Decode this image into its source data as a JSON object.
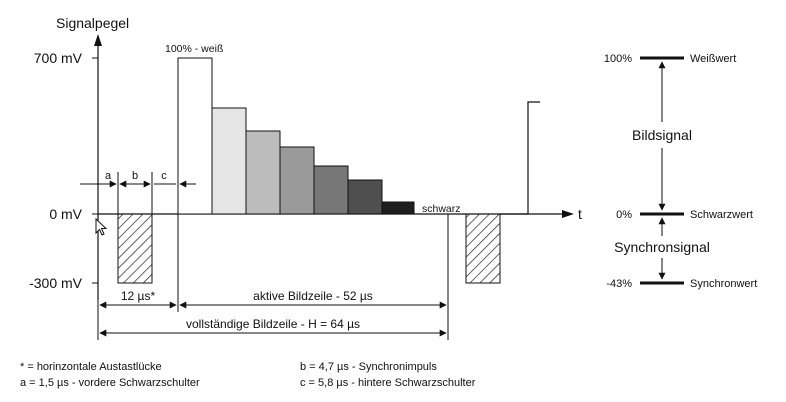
{
  "y_axis": {
    "title": "Signalpegel",
    "ticks": [
      {
        "label": "700 mV",
        "value": 700
      },
      {
        "label": "0 mV",
        "value": 0
      },
      {
        "label": "-300 mV",
        "value": -300
      }
    ]
  },
  "x_axis": {
    "label": "t"
  },
  "labels": {
    "white": "100% - weiß",
    "black": "schwarz",
    "a": "a",
    "b": "b",
    "c": "c",
    "blanking": "12 µs*",
    "active_line": "aktive Bildzeile - 52 µs",
    "full_line": "vollständige Bildzeile - H = 64 µs"
  },
  "scale": {
    "levels": [
      {
        "percent": "100%",
        "name": "Weißwert"
      },
      {
        "percent": "0%",
        "name": "Schwarzwert"
      },
      {
        "percent": "-43%",
        "name": "Synchronwert"
      }
    ],
    "bildsignal": "Bildsignal",
    "synchronsignal": "Synchronsignal"
  },
  "gray_steps": [
    "#ffffff",
    "#e6e6e6",
    "#bcbcbc",
    "#9a9a9a",
    "#777777",
    "#4f4f4f",
    "#1e1e1e"
  ],
  "footnotes": {
    "star": "* = horinzontale Austastlücke",
    "a": "a = 1,5 µs - vordere Schwarzschulter",
    "b": "b = 4,7 µs - Synchronimpuls",
    "c": "c = 5,8 µs - hintere Schwarzschulter"
  }
}
